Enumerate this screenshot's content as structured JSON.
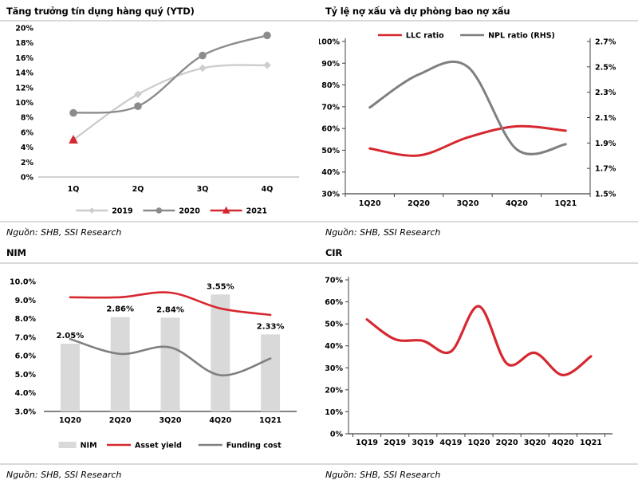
{
  "page": {
    "background": "#ffffff"
  },
  "colors": {
    "red": "#d62830",
    "gray": "#7f7f7f",
    "gray_2020": "#8c8c8c",
    "light_gray": "#cdcdcd",
    "bar_fill": "#d9d9d9",
    "rule": "#d9d9d9",
    "axis_light": "#c1c1c1",
    "axis_dark": "#404040",
    "axis_mid": "#595959"
  },
  "chart_data": [
    {
      "type": "line",
      "title": "Tăng trưởng tín dụng hàng quý (YTD)",
      "source": "Nguồn: SHB, SSI Research",
      "categories": [
        "1Q",
        "2Q",
        "3Q",
        "4Q"
      ],
      "series": [
        {
          "name": "2019",
          "values": [
            5.0,
            11.1,
            14.6,
            15.0
          ],
          "color": "#cdcdcd",
          "marker": "diamond"
        },
        {
          "name": "2020",
          "values": [
            8.6,
            9.5,
            16.3,
            19.0
          ],
          "color": "#8c8c8c",
          "marker": "circle"
        },
        {
          "name": "2021",
          "values": [
            5.0,
            null,
            null,
            null
          ],
          "color": "#d62830",
          "marker": "triangle"
        }
      ],
      "ylim": [
        0,
        20
      ],
      "ytick_step": 2,
      "ydecimals": 0,
      "grid": false,
      "legend_position": "bottom"
    },
    {
      "type": "line-dual",
      "title": "Tỷ lệ nợ xấu và dự phòng bao nợ xấu",
      "source": "Nguồn: SHB, SSI Research",
      "categories": [
        "1Q20",
        "2Q20",
        "3Q20",
        "4Q20",
        "1Q21"
      ],
      "series": [
        {
          "name": "LLC ratio",
          "axis": "left",
          "values": [
            50.8,
            47.6,
            55.9,
            61.0,
            59.0
          ],
          "color": "#d62830"
        },
        {
          "name": "NPL ratio (RHS)",
          "axis": "right",
          "values": [
            2.18,
            2.44,
            2.5,
            1.85,
            1.89
          ],
          "color": "#7f7f7f"
        }
      ],
      "ylim_left": [
        30,
        100
      ],
      "ytick_step_left": 10,
      "ydecimals_left": 0,
      "ylim_right": [
        1.5,
        2.7
      ],
      "ytick_step_right": 0.2,
      "ydecimals_right": 1,
      "grid": false,
      "legend_position": "top"
    },
    {
      "type": "bar-line",
      "title": "NIM",
      "source": "Nguồn: SHB, SSI Research",
      "categories": [
        "1Q20",
        "2Q20",
        "3Q20",
        "4Q20",
        "1Q21"
      ],
      "bar_series": {
        "name": "NIM",
        "values": [
          2.05,
          2.86,
          2.84,
          3.55,
          2.33
        ],
        "labels": [
          "2.05%",
          "2.86%",
          "2.84%",
          "3.55%",
          "2.33%"
        ],
        "display_tops_lhs": [
          6.65,
          8.08,
          8.05,
          9.3,
          7.15
        ],
        "color": "#d9d9d9"
      },
      "series": [
        {
          "name": "Asset yield",
          "values": [
            9.15,
            9.15,
            9.4,
            8.55,
            8.2
          ],
          "color": "#d62830"
        },
        {
          "name": "Funding cost",
          "values": [
            6.9,
            6.1,
            6.45,
            4.95,
            5.85
          ],
          "color": "#7f7f7f"
        }
      ],
      "ylim": [
        3,
        10
      ],
      "ytick_step": 1,
      "ydecimals": 1,
      "grid": false,
      "legend_position": "bottom"
    },
    {
      "type": "line",
      "title": "CIR",
      "source": "Nguồn: SHB, SSI Research",
      "categories": [
        "1Q19",
        "2Q19",
        "3Q19",
        "4Q19",
        "1Q20",
        "2Q20",
        "3Q20",
        "4Q20",
        "1Q21"
      ],
      "series": [
        {
          "name": "CIR",
          "values": [
            52.0,
            43.0,
            42.3,
            37.4,
            58.0,
            31.9,
            36.8,
            26.7,
            35.2
          ],
          "color": "#d62830"
        }
      ],
      "ylim": [
        0,
        70
      ],
      "ytick_step": 10,
      "ydecimals": 0,
      "grid": false,
      "legend_position": "none"
    }
  ]
}
